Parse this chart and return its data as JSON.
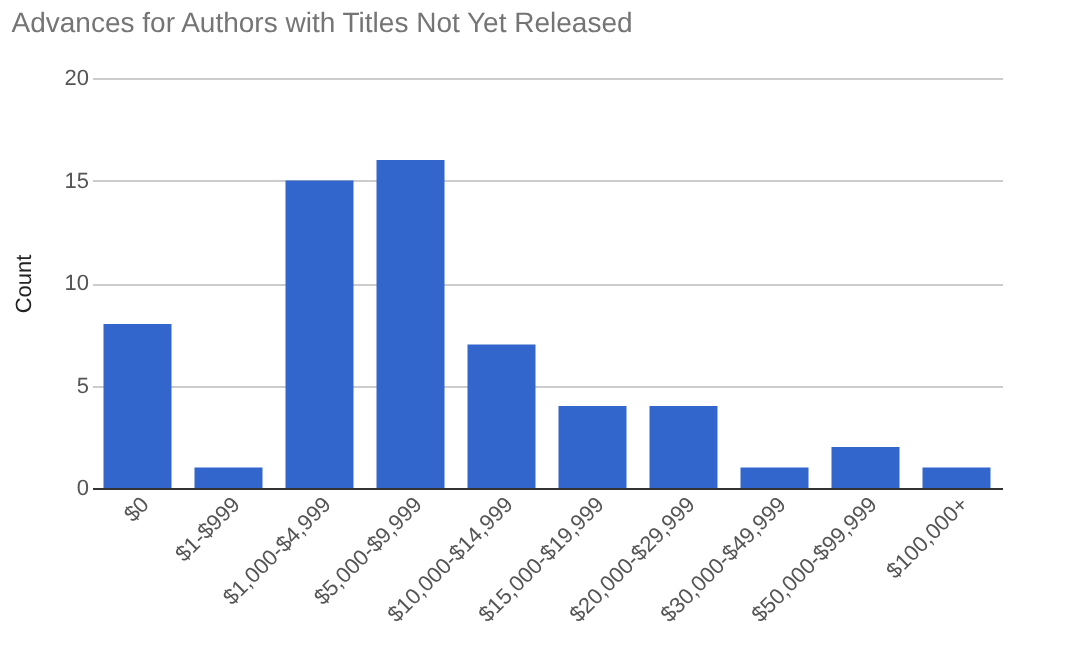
{
  "chart_data": {
    "type": "bar",
    "title": "Advances for Authors with Titles Not Yet Released",
    "ylabel": "Count",
    "categories": [
      "$0",
      "$1-$999",
      "$1,000-$4,999",
      "$5,000-$9,999",
      "$10,000-$14,999",
      "$15,000-$19,999",
      "$20,000-$29,999",
      "$30,000-$49,999",
      "$50,000-$99,999",
      "$100,000+"
    ],
    "values": [
      8,
      1,
      15,
      16,
      7,
      4,
      4,
      1,
      2,
      1
    ],
    "color": "#3366cc",
    "ylim": [
      0,
      20
    ],
    "yticks": [
      0,
      5,
      10,
      15,
      20
    ],
    "grid": "y"
  }
}
